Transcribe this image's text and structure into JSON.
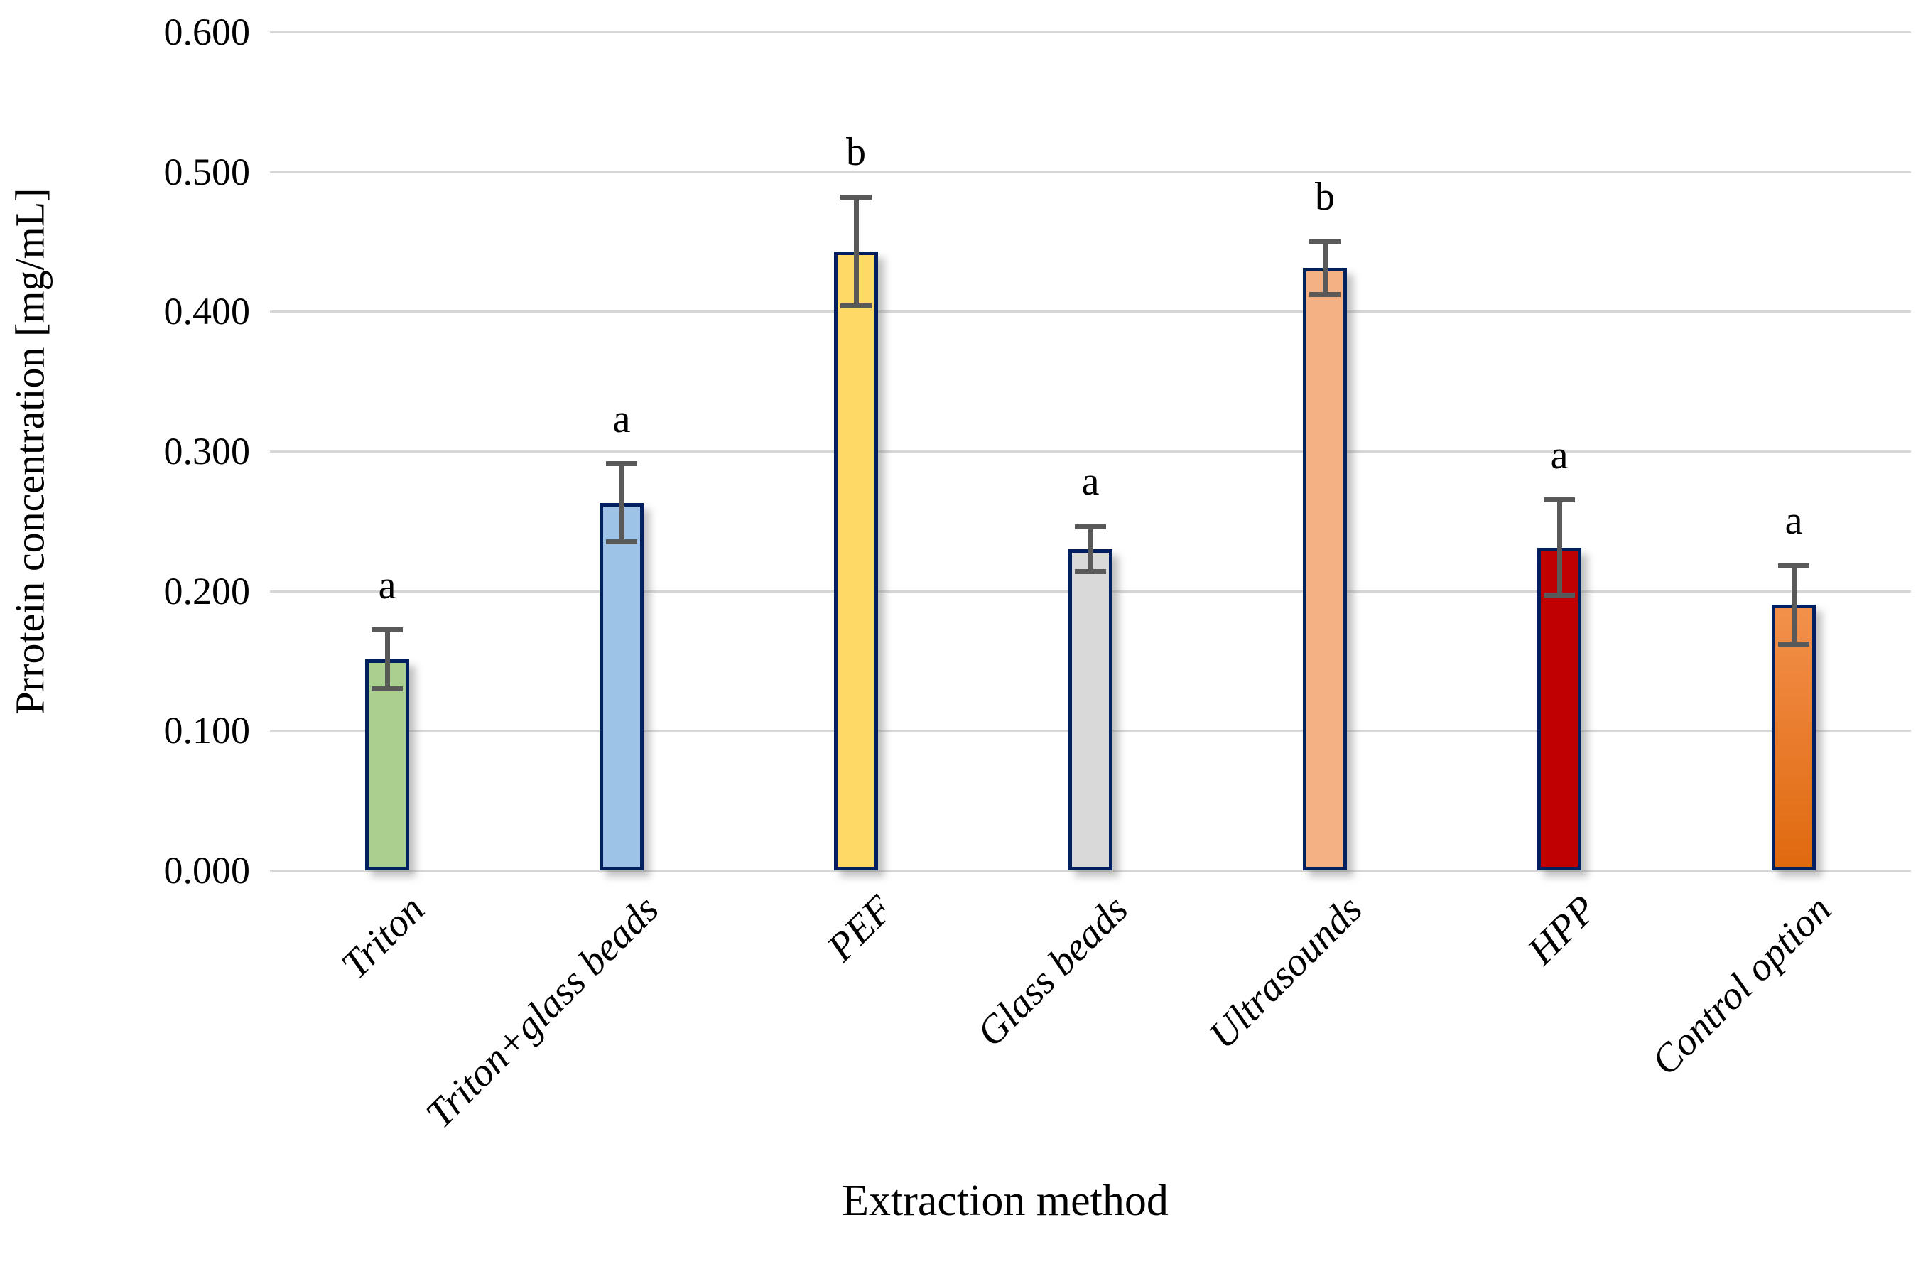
{
  "chart_data": {
    "type": "bar",
    "title": "",
    "xlabel": "Extraction method",
    "ylabel": "Prrotein concentration [mg/mL]",
    "ylim": [
      0.0,
      0.6
    ],
    "ytick_step": 0.1,
    "ytick_labels": [
      "0.000",
      "0.100",
      "0.200",
      "0.300",
      "0.400",
      "0.500",
      "0.600"
    ],
    "grid": "horizontal",
    "legend": "none",
    "categories": [
      "Triton",
      "Triton+glass beads",
      "PEF",
      "Glass beads",
      "Ultrasounds",
      "HPP",
      "Control option"
    ],
    "values": [
      0.151,
      0.263,
      0.443,
      0.23,
      0.431,
      0.231,
      0.19
    ],
    "errors": [
      0.021,
      0.028,
      0.039,
      0.016,
      0.019,
      0.034,
      0.028
    ],
    "significance_letters": [
      "a",
      "a",
      "b",
      "a",
      "b",
      "a",
      "a"
    ],
    "bar_fill_colors": [
      "#A9D08E",
      "#9DC3E6",
      "#FFD966",
      "#D9D9D9",
      "#F4B183",
      "#C00000",
      "#F2904B"
    ],
    "bar_fill_colors_bottom": [
      null,
      null,
      null,
      null,
      null,
      null,
      "#E0690F"
    ],
    "bar_border_color": "#002060",
    "error_bar_color": "#595959",
    "gridline_color": "#d6d6d6"
  }
}
